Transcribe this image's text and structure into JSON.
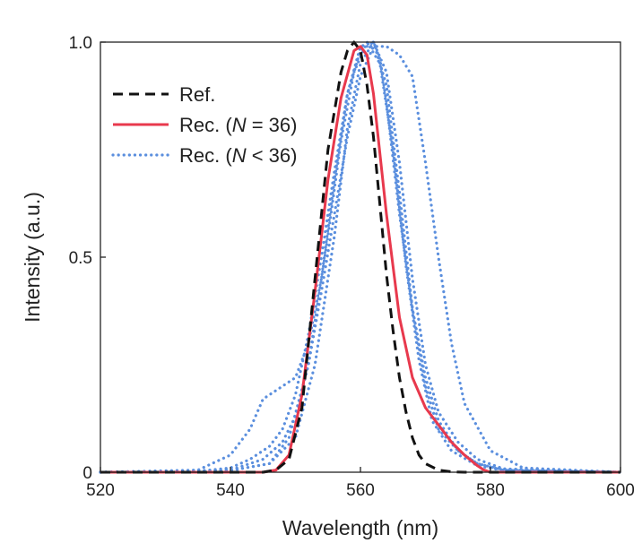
{
  "chart_data": {
    "type": "line",
    "title": "",
    "xlabel": "Wavelength (nm)",
    "ylabel": "Intensity (a.u.)",
    "xlim": [
      520,
      600
    ],
    "ylim": [
      0,
      1.0
    ],
    "xticks": [
      520,
      540,
      560,
      580,
      600
    ],
    "xtick_labels": [
      "520",
      "540",
      "560",
      "580",
      "600"
    ],
    "yticks": [
      0,
      0.5,
      1.0
    ],
    "ytick_labels": [
      "0",
      "0.5",
      "1.0"
    ],
    "legend_position": "top-left",
    "legend": [
      {
        "label_parts": [
          "Rec. (",
          "N",
          " < 36)"
        ],
        "series": "rec_lt36"
      },
      {
        "label_parts": [
          "Rec. (",
          "N",
          " = 36)"
        ],
        "series": "rec36"
      },
      {
        "label_parts": [
          "Ref."
        ],
        "series": "ref"
      }
    ],
    "series": [
      {
        "id": "rec_lt36",
        "name": "Rec. (N < 36) #1",
        "color": "#5b8fde",
        "style": "dotted",
        "x": [
          520,
          535,
          540,
          543,
          546,
          548,
          550,
          552,
          554,
          556,
          558,
          560,
          562,
          564,
          566,
          568,
          570,
          572,
          575,
          578,
          582,
          600
        ],
        "y": [
          0,
          0.002,
          0.01,
          0.03,
          0.06,
          0.1,
          0.18,
          0.32,
          0.5,
          0.7,
          0.88,
          0.99,
          1.0,
          0.9,
          0.65,
          0.38,
          0.2,
          0.1,
          0.05,
          0.02,
          0.005,
          0
        ]
      },
      {
        "id": "rec_lt36",
        "name": "Rec. (N < 36) #2",
        "color": "#5b8fde",
        "style": "dotted",
        "x": [
          520,
          535,
          540,
          543,
          545,
          548,
          550,
          552,
          554,
          556,
          558,
          560,
          562,
          564,
          566,
          568,
          570,
          572,
          575,
          578,
          582,
          600
        ],
        "y": [
          0,
          0.005,
          0.04,
          0.1,
          0.17,
          0.2,
          0.22,
          0.3,
          0.45,
          0.68,
          0.88,
          0.98,
          1.0,
          0.93,
          0.72,
          0.45,
          0.25,
          0.14,
          0.07,
          0.03,
          0.008,
          0
        ]
      },
      {
        "id": "rec_lt36",
        "name": "Rec. (N < 36) #3",
        "color": "#5b8fde",
        "style": "dotted",
        "x": [
          520,
          540,
          545,
          548,
          550,
          552,
          554,
          556,
          558,
          560,
          562,
          564,
          566,
          568,
          570,
          572,
          574,
          576,
          580,
          585,
          600
        ],
        "y": [
          0,
          0.005,
          0.03,
          0.07,
          0.13,
          0.25,
          0.42,
          0.6,
          0.78,
          0.92,
          0.99,
          0.99,
          0.97,
          0.92,
          0.72,
          0.5,
          0.3,
          0.16,
          0.05,
          0.01,
          0
        ]
      },
      {
        "id": "rec_lt36",
        "name": "Rec. (N < 36) #4",
        "color": "#5b8fde",
        "style": "dotted",
        "x": [
          520,
          540,
          546,
          550,
          553,
          556,
          558,
          560,
          562,
          563,
          564,
          566,
          568,
          570,
          572,
          575,
          578,
          582,
          600
        ],
        "y": [
          0,
          0.004,
          0.02,
          0.08,
          0.25,
          0.55,
          0.8,
          0.95,
          1.0,
          0.96,
          0.86,
          0.6,
          0.38,
          0.22,
          0.12,
          0.05,
          0.02,
          0.005,
          0
        ]
      },
      {
        "id": "rec_lt36",
        "name": "Rec. (N < 36) #5",
        "color": "#5b8fde",
        "style": "dotted",
        "x": [
          520,
          540,
          546,
          549,
          552,
          555,
          557,
          559,
          561,
          563,
          565,
          567,
          569,
          571,
          574,
          578,
          582,
          600
        ],
        "y": [
          0,
          0.004,
          0.02,
          0.08,
          0.25,
          0.55,
          0.77,
          0.93,
          1.0,
          0.95,
          0.75,
          0.48,
          0.26,
          0.12,
          0.05,
          0.015,
          0.004,
          0
        ]
      },
      {
        "id": "rec36",
        "name": "Rec. (N = 36)",
        "color": "#e8394d",
        "style": "solid",
        "x": [
          520,
          545,
          547,
          549,
          551,
          553,
          555,
          557,
          559,
          560,
          561,
          562,
          564,
          566,
          568,
          570,
          572,
          574,
          576,
          578,
          579,
          580,
          600
        ],
        "y": [
          0,
          0,
          0.005,
          0.04,
          0.18,
          0.42,
          0.68,
          0.87,
          0.98,
          0.99,
          0.97,
          0.88,
          0.6,
          0.36,
          0.22,
          0.15,
          0.11,
          0.07,
          0.04,
          0.015,
          0.005,
          0,
          0
        ]
      },
      {
        "id": "ref",
        "name": "Ref.",
        "color": "#111111",
        "style": "dashed",
        "x": [
          520,
          545,
          547,
          549,
          551,
          553,
          555,
          557,
          558,
          559,
          560,
          561,
          562,
          563,
          564,
          565,
          566,
          567,
          568,
          569,
          570,
          572,
          574,
          576,
          600
        ],
        "y": [
          0,
          0,
          0.005,
          0.03,
          0.15,
          0.45,
          0.75,
          0.93,
          0.98,
          1.0,
          0.98,
          0.9,
          0.78,
          0.62,
          0.46,
          0.33,
          0.22,
          0.14,
          0.08,
          0.04,
          0.02,
          0.005,
          0.001,
          0,
          0
        ]
      }
    ]
  }
}
